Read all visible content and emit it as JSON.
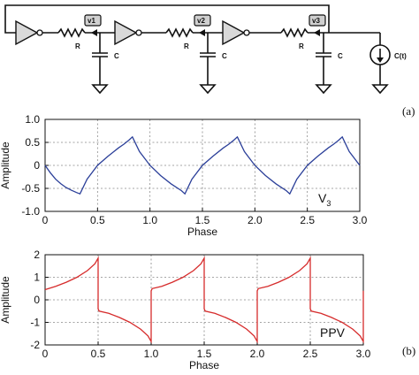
{
  "circuit": {
    "nodes": [
      "v1",
      "v2",
      "v3"
    ],
    "resistor_label": "R",
    "capacitor_label": "C",
    "source_label": "C(t)"
  },
  "panel_labels": {
    "a": "(a)",
    "b": "(b)"
  },
  "colors": {
    "v3_line": "#2b3f99",
    "ppv_line": "#d62b2b",
    "gate_fill": "#d9d9d9"
  },
  "chart_data": [
    {
      "type": "line",
      "xlabel": "Phase",
      "ylabel": "Amplitude",
      "xlim": [
        0,
        3.0
      ],
      "ylim": [
        -1.0,
        1.0
      ],
      "xticks": [
        "0",
        "0.5",
        "1.0",
        "1.5",
        "2.0",
        "2.5",
        "3.0"
      ],
      "yticks": [
        "1.0",
        "0.5",
        "0",
        "-0.5",
        "-1.0"
      ],
      "grid": true,
      "annotation": {
        "main": "V",
        "sub": "3"
      },
      "series": [
        {
          "x": [
            0.0,
            0.05,
            0.1,
            0.15,
            0.2,
            0.25,
            0.3,
            0.333,
            0.4,
            0.5,
            0.6,
            0.7,
            0.75,
            0.8,
            0.833,
            0.9,
            1.0,
            1.1,
            1.2,
            1.3,
            1.333,
            1.4,
            1.5,
            1.6,
            1.7,
            1.75,
            1.8,
            1.833,
            1.9,
            2.0,
            2.1,
            2.2,
            2.3,
            2.333,
            2.4,
            2.5,
            2.6,
            2.7,
            2.75,
            2.8,
            2.833,
            2.9,
            3.0
          ],
          "values": [
            0.0,
            -0.16,
            -0.3,
            -0.4,
            -0.48,
            -0.54,
            -0.59,
            -0.62,
            -0.3,
            0.0,
            0.2,
            0.38,
            0.46,
            0.55,
            0.62,
            0.3,
            0.0,
            -0.22,
            -0.4,
            -0.55,
            -0.62,
            -0.3,
            0.0,
            0.2,
            0.38,
            0.46,
            0.55,
            0.62,
            0.3,
            0.0,
            -0.22,
            -0.4,
            -0.55,
            -0.62,
            -0.3,
            0.0,
            0.2,
            0.38,
            0.46,
            0.55,
            0.62,
            0.3,
            0.0
          ]
        }
      ]
    },
    {
      "type": "line",
      "xlabel": "Phase",
      "ylabel": "Amplitude",
      "xlim": [
        0,
        3.0
      ],
      "ylim": [
        -2,
        2
      ],
      "xticks": [
        "0",
        "0.5",
        "1.0",
        "1.5",
        "2.0",
        "2.5",
        "3.0"
      ],
      "yticks": [
        "2",
        "1",
        "0",
        "-1",
        "-2"
      ],
      "grid": true,
      "annotation": {
        "main": "PPV",
        "sub": ""
      },
      "series": [
        {
          "x": [
            0.0,
            0.1,
            0.2,
            0.3,
            0.4,
            0.47,
            0.5,
            0.5,
            0.51,
            0.6,
            0.7,
            0.8,
            0.9,
            0.97,
            1.0,
            1.0,
            1.01,
            1.1,
            1.2,
            1.3,
            1.4,
            1.47,
            1.5,
            1.5,
            1.51,
            1.6,
            1.7,
            1.8,
            1.9,
            1.97,
            2.0,
            2.0,
            2.01,
            2.1,
            2.2,
            2.3,
            2.4,
            2.47,
            2.5,
            2.5,
            2.51,
            2.6,
            2.7,
            2.8,
            2.9,
            2.97,
            3.0,
            3.0
          ],
          "values": [
            0.45,
            0.6,
            0.78,
            1.0,
            1.3,
            1.6,
            1.85,
            -0.4,
            -0.5,
            -0.6,
            -0.78,
            -1.0,
            -1.3,
            -1.6,
            -1.85,
            0.4,
            0.5,
            0.6,
            0.78,
            1.0,
            1.3,
            1.6,
            1.85,
            -0.4,
            -0.5,
            -0.6,
            -0.78,
            -1.0,
            -1.3,
            -1.6,
            -1.85,
            0.4,
            0.5,
            0.6,
            0.78,
            1.0,
            1.3,
            1.6,
            1.85,
            -0.4,
            -0.5,
            -0.6,
            -0.78,
            -1.0,
            -1.3,
            -1.6,
            -1.85,
            0.4
          ]
        }
      ]
    }
  ]
}
